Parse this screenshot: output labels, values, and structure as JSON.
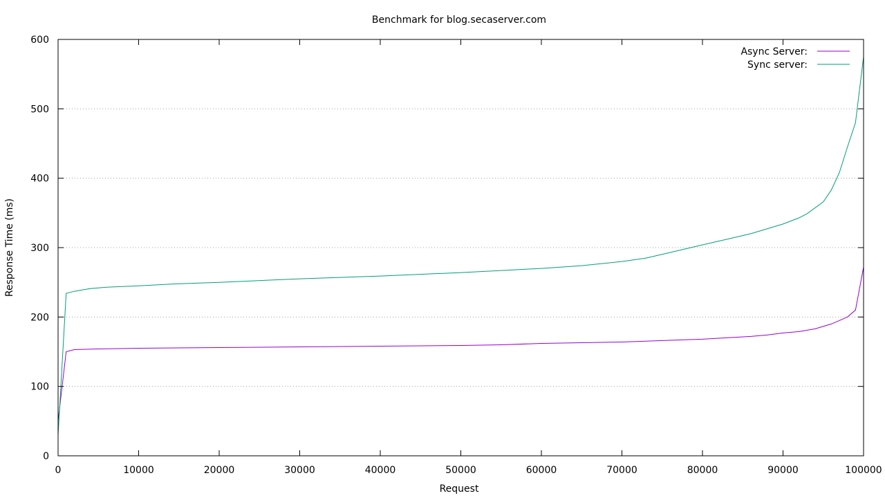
{
  "chart_data": {
    "type": "line",
    "title": "Benchmark for blog.secaserver.com",
    "xlabel": "Request",
    "ylabel": "Response Time (ms)",
    "xlim": [
      0,
      100000
    ],
    "ylim": [
      0,
      600
    ],
    "xticks": [
      0,
      10000,
      20000,
      30000,
      40000,
      50000,
      60000,
      70000,
      80000,
      90000,
      100000
    ],
    "yticks": [
      0,
      100,
      200,
      300,
      400,
      500,
      600
    ],
    "grid": "horizontal dotted",
    "legend": "top-right",
    "series": [
      {
        "name": "Async Server:",
        "color": "#9400d3",
        "x": [
          0,
          1000,
          2000,
          5000,
          10000,
          20000,
          30000,
          40000,
          50000,
          55000,
          60000,
          65000,
          70000,
          75000,
          80000,
          83000,
          86000,
          88000,
          90000,
          92000,
          94000,
          96000,
          97000,
          98000,
          99000,
          100000
        ],
        "y": [
          50,
          150,
          153,
          154,
          155,
          156,
          157,
          158,
          159,
          160,
          162,
          163,
          164,
          166,
          168,
          170,
          172,
          174,
          177,
          179,
          183,
          190,
          195,
          200,
          210,
          272
        ]
      },
      {
        "name": "Sync server:",
        "color": "#009e73",
        "x": [
          0,
          1000,
          2000,
          4000,
          6000,
          10000,
          15000,
          20000,
          30000,
          40000,
          50000,
          55000,
          60000,
          65000,
          70000,
          73000,
          76000,
          80000,
          83000,
          86000,
          88000,
          90000,
          92000,
          93000,
          95000,
          96000,
          97000,
          98000,
          99000,
          100000
        ],
        "y": [
          30,
          234,
          237,
          241,
          243,
          245,
          248,
          250,
          255,
          259,
          264,
          267,
          270,
          274,
          280,
          285,
          293,
          304,
          312,
          320,
          327,
          334,
          343,
          349,
          366,
          383,
          408,
          445,
          480,
          575
        ]
      }
    ]
  }
}
